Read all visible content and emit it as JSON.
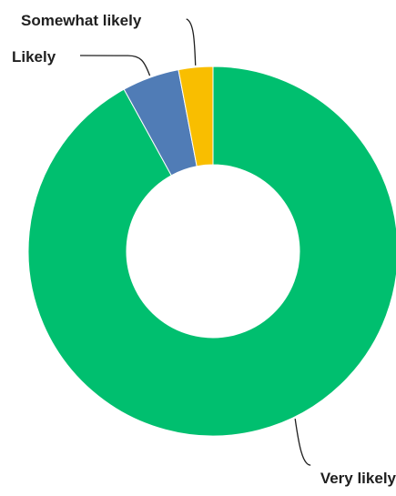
{
  "chart_data": {
    "type": "pie",
    "style": "donut",
    "title": "",
    "slices": [
      {
        "label": "Very likely",
        "value": 92,
        "color": "#00BF6F"
      },
      {
        "label": "Likely",
        "value": 5,
        "color": "#507CB6"
      },
      {
        "label": "Somewhat likely",
        "value": 3,
        "color": "#F9BE00"
      }
    ]
  }
}
